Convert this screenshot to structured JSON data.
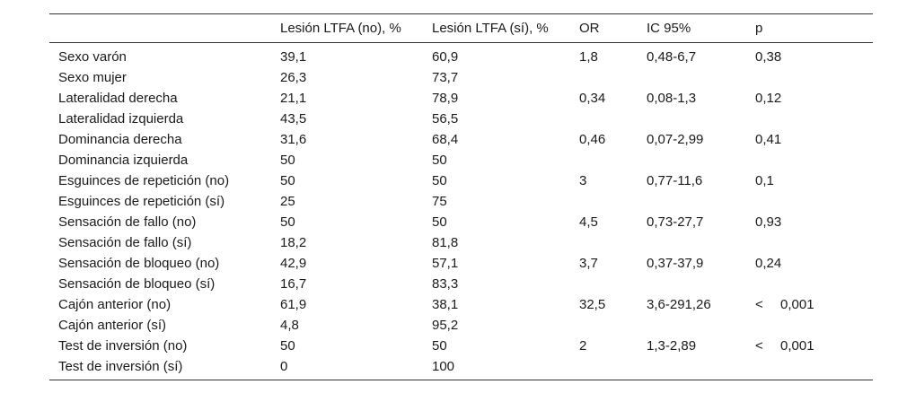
{
  "table": {
    "headers": [
      "",
      "Lesión LTFA (no), %",
      "Lesión LTFA (sí), %",
      "OR",
      "IC 95%",
      "p"
    ],
    "rows": [
      {
        "label": "Sexo varón",
        "no": "39,1",
        "si": "60,9",
        "or": "1,8",
        "ic": "0,48-6,7",
        "p_sign": "",
        "p": "0,38"
      },
      {
        "label": "Sexo mujer",
        "no": "26,3",
        "si": "73,7",
        "or": "",
        "ic": "",
        "p_sign": "",
        "p": ""
      },
      {
        "label": "Lateralidad derecha",
        "no": "21,1",
        "si": "78,9",
        "or": "0,34",
        "ic": "0,08-1,3",
        "p_sign": "",
        "p": "0,12"
      },
      {
        "label": "Lateralidad izquierda",
        "no": "43,5",
        "si": "56,5",
        "or": "",
        "ic": "",
        "p_sign": "",
        "p": ""
      },
      {
        "label": "Dominancia derecha",
        "no": "31,6",
        "si": "68,4",
        "or": "0,46",
        "ic": "0,07-2,99",
        "p_sign": "",
        "p": "0,41"
      },
      {
        "label": "Dominancia izquierda",
        "no": "50",
        "si": "50",
        "or": "",
        "ic": "",
        "p_sign": "",
        "p": ""
      },
      {
        "label": "Esguinces de repetición (no)",
        "no": "50",
        "si": "50",
        "or": "3",
        "ic": "0,77-11,6",
        "p_sign": "",
        "p": "0,1"
      },
      {
        "label": "Esguinces de repetición (sí)",
        "no": "25",
        "si": "75",
        "or": "",
        "ic": "",
        "p_sign": "",
        "p": ""
      },
      {
        "label": "Sensación de fallo (no)",
        "no": "50",
        "si": "50",
        "or": "4,5",
        "ic": "0,73-27,7",
        "p_sign": "",
        "p": "0,93"
      },
      {
        "label": "Sensación de fallo (sí)",
        "no": "18,2",
        "si": "81,8",
        "or": "",
        "ic": "",
        "p_sign": "",
        "p": ""
      },
      {
        "label": "Sensación de bloqueo (no)",
        "no": "42,9",
        "si": "57,1",
        "or": "3,7",
        "ic": "0,37-37,9",
        "p_sign": "",
        "p": "0,24"
      },
      {
        "label": "Sensación de bloqueo (sí)",
        "no": "16,7",
        "si": "83,3",
        "or": "",
        "ic": "",
        "p_sign": "",
        "p": ""
      },
      {
        "label": "Cajón anterior (no)",
        "no": "61,9",
        "si": "38,1",
        "or": "32,5",
        "ic": "3,6-291,26",
        "p_sign": "<",
        "p": "0,001"
      },
      {
        "label": "Cajón anterior (sí)",
        "no": "4,8",
        "si": "95,2",
        "or": "",
        "ic": "",
        "p_sign": "",
        "p": ""
      },
      {
        "label": "Test de inversión (no)",
        "no": "50",
        "si": "50",
        "or": "2",
        "ic": "1,3-2,89",
        "p_sign": "<",
        "p": "0,001"
      },
      {
        "label": "Test de inversión (sí)",
        "no": "0",
        "si": "100",
        "or": "",
        "ic": "",
        "p_sign": "",
        "p": ""
      }
    ]
  }
}
